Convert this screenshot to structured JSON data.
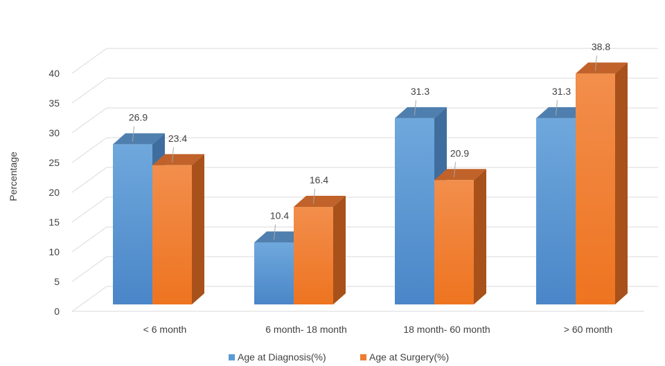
{
  "chart_data": {
    "type": "bar",
    "title": "",
    "xlabel": "",
    "ylabel": "Percentage",
    "ylim": [
      0,
      40
    ],
    "yticks": [
      0,
      5,
      10,
      15,
      20,
      25,
      30,
      35,
      40
    ],
    "grid": true,
    "style": "3d-clustered-column",
    "legend_position": "bottom",
    "categories": [
      "< 6 month",
      "6 month- 18 month",
      "18 month- 60 month",
      "> 60 month"
    ],
    "series": [
      {
        "name": "Age at Diagnosis(%)",
        "color": "#5B9BD5",
        "values": [
          26.9,
          10.4,
          31.3,
          31.3
        ]
      },
      {
        "name": "Age at Surgery(%)",
        "color": "#ED7D31",
        "values": [
          23.4,
          16.4,
          20.9,
          38.8
        ]
      }
    ]
  }
}
